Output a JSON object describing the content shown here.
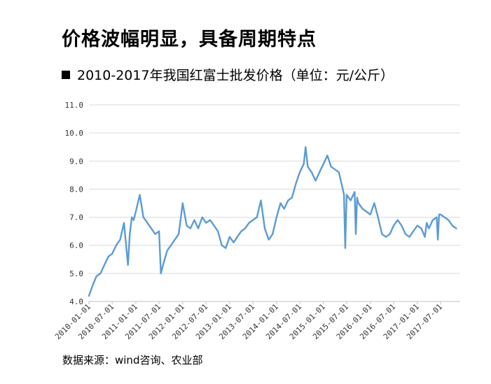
{
  "headline": "价格波幅明显，具备周期特点",
  "chart_data": {
    "type": "line",
    "title": "2010-2017年我国红富士批发价格（单位：元/公斤）",
    "xlabel": "",
    "ylabel": "",
    "ylim": [
      4.0,
      11.0
    ],
    "y_ticks": [
      "4.0",
      "5.0",
      "6.0",
      "7.0",
      "8.0",
      "9.0",
      "10.0",
      "11.0"
    ],
    "x_ticks": [
      "2010-01-01",
      "2010-07-01",
      "2011-01-01",
      "2011-07-01",
      "2012-01-01",
      "2012-07-01",
      "2013-01-01",
      "2013-07-01",
      "2014-01-01",
      "2014-07-01",
      "2015-01-01",
      "2015-07-01",
      "2016-01-01",
      "2016-07-01",
      "2017-01-01",
      "2017-07-01"
    ],
    "grid": "horizontal",
    "line_color": "#5b9bd5",
    "series": [
      {
        "x": [
          "2010-01-01",
          "2010-02-01",
          "2010-03-01",
          "2010-04-01",
          "2010-05-01",
          "2010-06-01",
          "2010-07-01",
          "2010-08-01",
          "2010-09-01",
          "2010-10-01",
          "2010-11-01",
          "2010-11-15",
          "2010-12-01",
          "2010-12-15",
          "2011-01-01",
          "2011-02-01",
          "2011-03-01",
          "2011-04-01",
          "2011-05-01",
          "2011-06-01",
          "2011-07-01",
          "2011-07-15",
          "2011-08-01",
          "2011-09-01",
          "2011-10-01",
          "2011-11-01",
          "2011-12-01",
          "2012-01-01",
          "2012-02-01",
          "2012-03-01",
          "2012-04-01",
          "2012-05-01",
          "2012-06-01",
          "2012-07-01",
          "2012-08-01",
          "2012-09-01",
          "2012-10-01",
          "2012-11-01",
          "2012-12-01",
          "2013-01-01",
          "2013-02-01",
          "2013-03-01",
          "2013-04-01",
          "2013-05-01",
          "2013-06-01",
          "2013-07-01",
          "2013-08-01",
          "2013-09-01",
          "2013-10-01",
          "2013-11-01",
          "2013-12-01",
          "2014-01-01",
          "2014-02-01",
          "2014-03-01",
          "2014-04-01",
          "2014-05-01",
          "2014-06-01",
          "2014-07-01",
          "2014-08-01",
          "2014-08-15",
          "2014-09-01",
          "2014-10-01",
          "2014-11-01",
          "2014-12-01",
          "2015-01-01",
          "2015-02-01",
          "2015-03-01",
          "2015-04-01",
          "2015-05-01",
          "2015-06-01",
          "2015-06-10",
          "2015-06-20",
          "2015-07-01",
          "2015-08-01",
          "2015-09-01",
          "2015-09-10",
          "2015-09-20",
          "2015-10-01",
          "2015-11-01",
          "2015-12-01",
          "2016-01-01",
          "2016-02-01",
          "2016-03-01",
          "2016-04-01",
          "2016-05-01",
          "2016-06-01",
          "2016-07-01",
          "2016-08-01",
          "2016-09-01",
          "2016-10-01",
          "2016-11-01",
          "2016-12-01",
          "2017-01-01",
          "2017-02-01",
          "2017-03-01",
          "2017-03-15",
          "2017-04-01",
          "2017-05-01",
          "2017-06-01",
          "2017-06-10",
          "2017-06-20",
          "2017-07-01",
          "2017-08-01",
          "2017-09-01",
          "2017-10-01",
          "2017-11-01"
        ],
        "values": [
          4.2,
          4.6,
          4.9,
          5.0,
          5.3,
          5.6,
          5.7,
          6.0,
          6.2,
          6.8,
          5.3,
          6.4,
          7.0,
          6.9,
          7.2,
          7.8,
          7.0,
          6.8,
          6.6,
          6.4,
          6.5,
          5.0,
          5.3,
          5.8,
          6.0,
          6.2,
          6.4,
          7.5,
          6.7,
          6.6,
          6.9,
          6.6,
          7.0,
          6.8,
          6.9,
          6.7,
          6.5,
          6.0,
          5.9,
          6.3,
          6.1,
          6.3,
          6.5,
          6.6,
          6.8,
          6.9,
          7.0,
          7.6,
          6.6,
          6.2,
          6.4,
          7.0,
          7.5,
          7.3,
          7.6,
          7.7,
          8.2,
          8.6,
          8.9,
          9.5,
          8.8,
          8.6,
          8.3,
          8.6,
          8.9,
          9.2,
          8.8,
          8.7,
          8.6,
          8.0,
          7.8,
          5.9,
          7.8,
          7.6,
          7.9,
          6.4,
          7.7,
          7.5,
          7.3,
          7.2,
          7.1,
          7.5,
          7.0,
          6.4,
          6.3,
          6.4,
          6.7,
          6.9,
          6.7,
          6.4,
          6.3,
          6.5,
          6.7,
          6.6,
          6.3,
          6.8,
          6.6,
          6.9,
          7.0,
          6.2,
          7.1,
          7.1,
          7.0,
          6.9,
          6.7,
          6.6
        ]
      }
    ]
  },
  "source": "数据来源：wind咨询、农业部"
}
